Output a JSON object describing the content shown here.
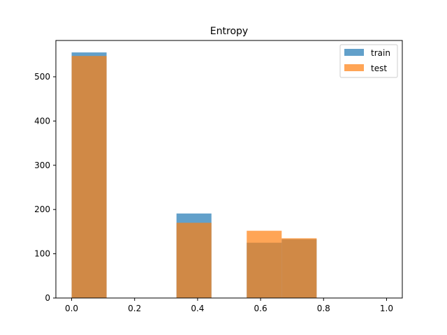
{
  "chart_data": {
    "type": "bar",
    "title": "Entropy",
    "xlabel": "",
    "ylabel": "",
    "xlim": [
      -0.05,
      1.05
    ],
    "ylim": [
      0,
      582
    ],
    "xticks": [
      0.0,
      0.2,
      0.4,
      0.6,
      0.8,
      1.0
    ],
    "xtick_labels": [
      "0.0",
      "0.2",
      "0.4",
      "0.6",
      "0.8",
      "1.0"
    ],
    "yticks": [
      0,
      100,
      200,
      300,
      400,
      500
    ],
    "ytick_labels": [
      "0",
      "100",
      "200",
      "300",
      "400",
      "500"
    ],
    "bin_edges": [
      0.0,
      0.111,
      0.222,
      0.333,
      0.444,
      0.556,
      0.667,
      0.778,
      0.889,
      1.0
    ],
    "legend_position": "top-right",
    "grid": false,
    "series": [
      {
        "name": "train",
        "color": "#1f77b4",
        "opacity": 0.7,
        "values": [
          555,
          0,
          0,
          191,
          0,
          125,
          133,
          0,
          0
        ]
      },
      {
        "name": "test",
        "color": "#ff7f0e",
        "opacity": 0.7,
        "values": [
          547,
          0,
          0,
          170,
          0,
          152,
          135,
          0,
          0
        ]
      }
    ]
  }
}
